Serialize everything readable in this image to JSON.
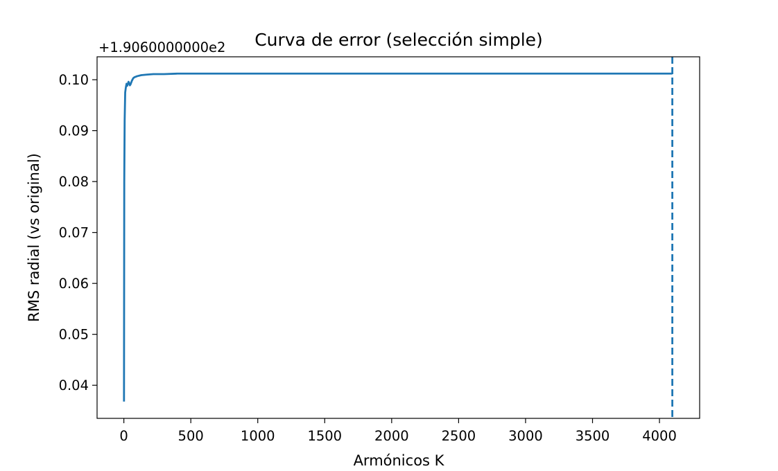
{
  "chart_data": {
    "type": "line",
    "title": "Curva de error (selección simple)",
    "xlabel": "Armónicos K",
    "ylabel": "RMS radial (vs original)",
    "y_offset_label": "+1.9060000000e2",
    "xlim": [
      -200,
      4300
    ],
    "ylim": [
      0.0335,
      0.1045
    ],
    "xticks": [
      0,
      500,
      1000,
      1500,
      2000,
      2500,
      3000,
      3500,
      4000
    ],
    "xtick_labels": [
      "0",
      "500",
      "1000",
      "1500",
      "2000",
      "2500",
      "3000",
      "3500",
      "4000"
    ],
    "yticks": [
      0.04,
      0.05,
      0.06,
      0.07,
      0.08,
      0.09,
      0.1
    ],
    "ytick_labels": [
      "0.04",
      "0.05",
      "0.06",
      "0.07",
      "0.08",
      "0.09",
      "0.10"
    ],
    "grid": false,
    "colors": {
      "series": "#1f77b4"
    },
    "series": [
      {
        "x": [
          1,
          3,
          6,
          10,
          15,
          20,
          25,
          30,
          35,
          40,
          45,
          50,
          60,
          70,
          80,
          100,
          130,
          170,
          220,
          300,
          400,
          600,
          1000,
          2000,
          3000,
          4096
        ],
        "y": [
          0.0368,
          0.08,
          0.092,
          0.0975,
          0.0985,
          0.0992,
          0.0988,
          0.0992,
          0.0996,
          0.0993,
          0.0989,
          0.0991,
          0.0998,
          0.1003,
          0.1005,
          0.1007,
          0.1009,
          0.101,
          0.1011,
          0.1011,
          0.1012,
          0.1012,
          0.1012,
          0.1012,
          0.1012,
          0.1012
        ]
      }
    ],
    "vline": {
      "x": 4096,
      "style": "dashed"
    }
  }
}
